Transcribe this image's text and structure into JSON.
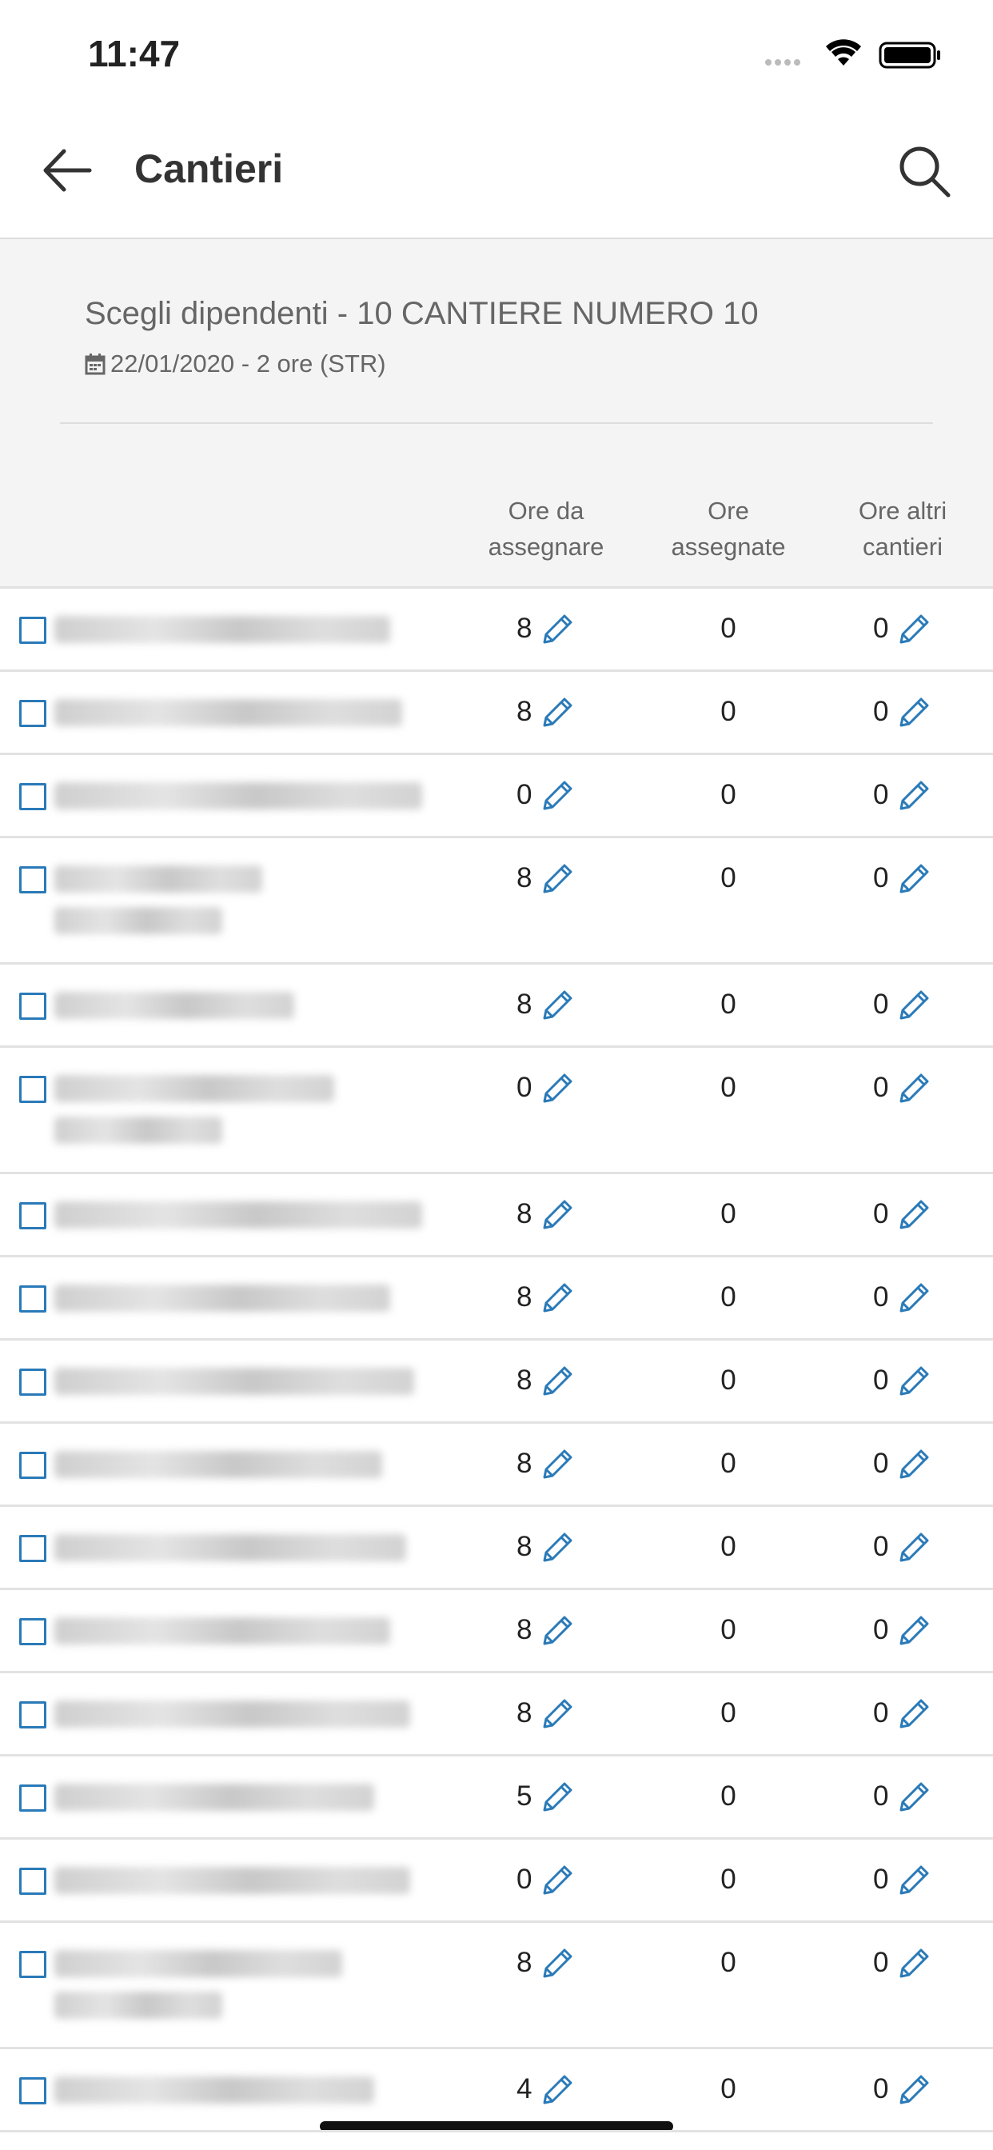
{
  "status_bar": {
    "time": "11:47"
  },
  "header": {
    "title": "Cantieri"
  },
  "subtitle": {
    "title": "Scegli dipendenti - 10 CANTIERE NUMERO 10",
    "date": "22/01/2020 - 2 ore (STR)"
  },
  "table": {
    "columns": [
      "Ore da assegnare",
      "Ore assegnate",
      "Ore altri cantieri"
    ],
    "rows": [
      [
        8,
        0,
        0
      ],
      [
        8,
        0,
        0
      ],
      [
        0,
        0,
        0
      ],
      [
        8,
        0,
        0
      ],
      [
        8,
        0,
        0
      ],
      [
        0,
        0,
        0
      ],
      [
        8,
        0,
        0
      ],
      [
        8,
        0,
        0
      ],
      [
        8,
        0,
        0
      ],
      [
        8,
        0,
        0
      ],
      [
        8,
        0,
        0
      ],
      [
        8,
        0,
        0
      ],
      [
        8,
        0,
        0
      ],
      [
        5,
        0,
        0
      ],
      [
        0,
        0,
        0
      ],
      [
        8,
        0,
        0
      ],
      [
        4,
        0,
        0
      ]
    ]
  }
}
